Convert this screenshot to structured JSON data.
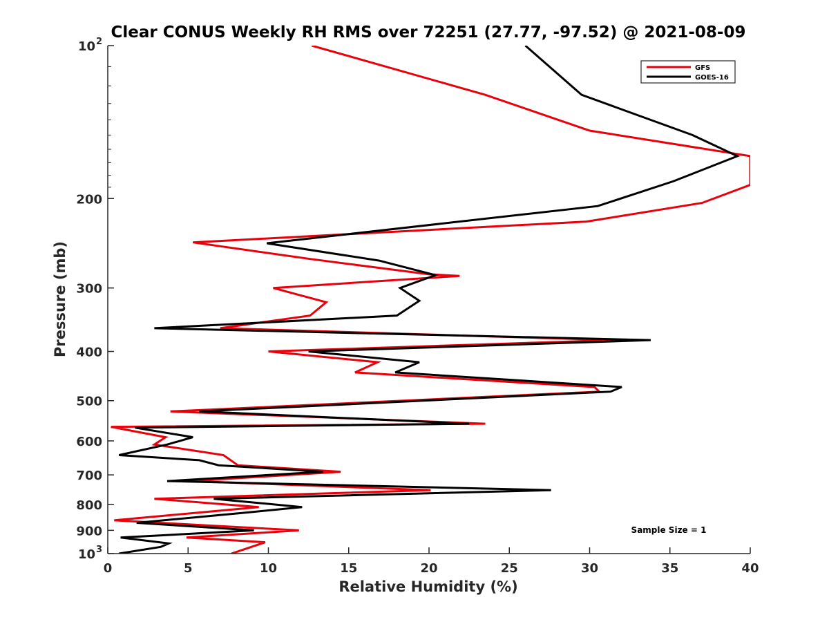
{
  "chart_data": {
    "type": "line",
    "title": "Clear CONUS Weekly RH RMS over 72251 (27.77, -97.52) @ 2021-08-09",
    "xlabel": "Relative Humidity (%)",
    "ylabel": "Pressure (mb)",
    "xlim": [
      0,
      40
    ],
    "ylim": [
      1000,
      100
    ],
    "y_scale": "log",
    "y_reversed": true,
    "grid": false,
    "legend_position": "top-right",
    "annotation": "Sample Size = 1",
    "x_ticks": [
      "0",
      "5",
      "10",
      "15",
      "20",
      "25",
      "30",
      "35",
      "40"
    ],
    "y_ticks": [
      {
        "value": 100,
        "base": "10",
        "exp": "2"
      },
      {
        "value": 200,
        "base": "200",
        "exp": ""
      },
      {
        "value": 300,
        "base": "300",
        "exp": ""
      },
      {
        "value": 400,
        "base": "400",
        "exp": ""
      },
      {
        "value": 500,
        "base": "500",
        "exp": ""
      },
      {
        "value": 600,
        "base": "600",
        "exp": ""
      },
      {
        "value": 700,
        "base": "700",
        "exp": ""
      },
      {
        "value": 800,
        "base": "800",
        "exp": ""
      },
      {
        "value": 900,
        "base": "900",
        "exp": ""
      },
      {
        "value": 1000,
        "base": "10",
        "exp": "3"
      }
    ],
    "series": [
      {
        "name": "GFS",
        "color": "#e8000b",
        "x": [
          12.7,
          23.5,
          30.0,
          40.0,
          40.0,
          37.0,
          29.8,
          5.3,
          12.6,
          20.0,
          21.9,
          10.3,
          13.6,
          12.6,
          7.0,
          31.5,
          10.0,
          16.8,
          15.4,
          30.3,
          30.6,
          3.9,
          23.5,
          0.2,
          3.6,
          2.9,
          7.2,
          8.1,
          14.5,
          5.2,
          20.1,
          2.9,
          9.4,
          0.4,
          11.9,
          4.9,
          9.8,
          7.7
        ],
        "y": [
          100,
          125,
          147,
          165,
          188,
          204,
          222,
          244,
          263,
          282,
          284,
          300,
          320,
          340,
          360,
          380,
          400,
          420,
          440,
          470,
          480,
          525,
          555,
          563,
          590,
          610,
          640,
          670,
          690,
          720,
          750,
          780,
          810,
          860,
          900,
          930,
          950,
          1000
        ]
      },
      {
        "name": "GOES-16",
        "color": "#000000",
        "x": [
          26.0,
          29.5,
          36.4,
          39.2,
          35.2,
          30.5,
          9.9,
          16.9,
          20.4,
          18.2,
          19.4,
          18.0,
          2.9,
          33.8,
          12.5,
          19.4,
          17.9,
          32.0,
          31.3,
          5.7,
          22.5,
          1.7,
          5.3,
          3.7,
          0.7,
          5.7,
          6.9,
          13.4,
          3.7,
          27.6,
          6.6,
          12.1,
          8.7,
          1.8,
          9.1,
          0.8,
          3.8,
          3.3,
          0.7
        ],
        "y": [
          100,
          125,
          150,
          165,
          185,
          207,
          245,
          265,
          283,
          300,
          318,
          340,
          360,
          380,
          400,
          420,
          440,
          470,
          480,
          525,
          555,
          565,
          590,
          610,
          640,
          655,
          670,
          690,
          720,
          750,
          780,
          810,
          830,
          870,
          900,
          930,
          955,
          970,
          1000
        ]
      }
    ]
  }
}
